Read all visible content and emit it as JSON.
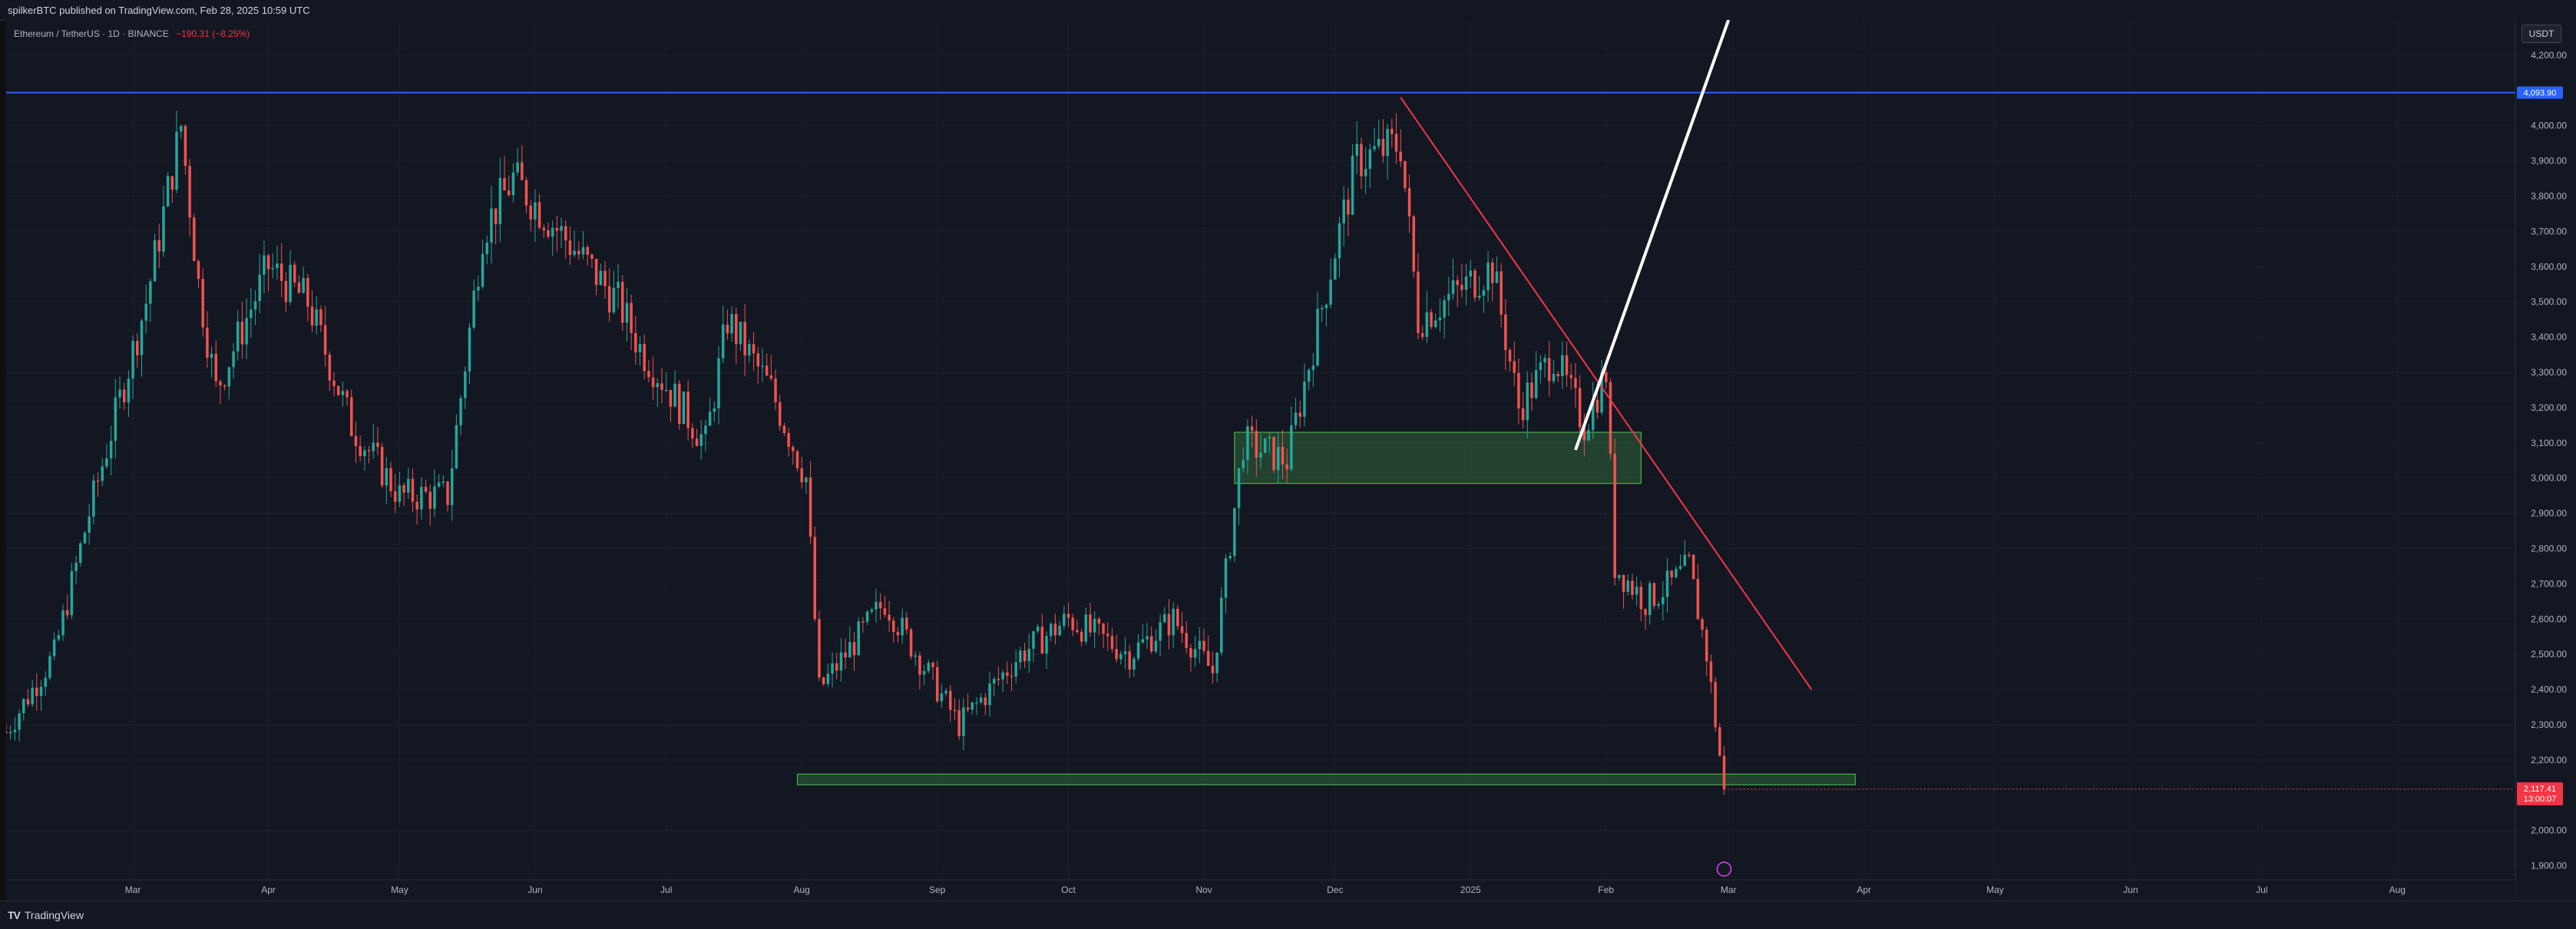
{
  "header": {
    "publish_text": "spilkerBTC published on TradingView.com, Feb 28, 2025 10:59 UTC"
  },
  "legend": {
    "symbol": "Ethereum / TetherUS · 1D · BINANCE",
    "change": "−190.31 (−8.25%)"
  },
  "currency": "USDT",
  "footer": {
    "brand": "TradingView"
  },
  "colors": {
    "up": "#26a69a",
    "down": "#ef5350",
    "hline": "#2962ff",
    "trendline": "#f23645",
    "zone_fill": "rgba(76,175,80,0.28)",
    "zone_stroke": "#4caf50",
    "arrow": "#ffffff",
    "background": "#131722"
  },
  "chart_data": {
    "type": "candlestick",
    "symbol": "ETHUSDT",
    "interval": "1D",
    "ylim": [
      1860,
      4300
    ],
    "y_ticks": [
      "4,200.00",
      "4,000.00",
      "3,900.00",
      "3,800.00",
      "3,700.00",
      "3,600.00",
      "3,500.00",
      "3,400.00",
      "3,300.00",
      "3,200.00",
      "3,100.00",
      "3,000.00",
      "2,900.00",
      "2,800.00",
      "2,700.00",
      "2,600.00",
      "2,500.00",
      "2,400.00",
      "2,300.00",
      "2,200.00",
      "2,000.00",
      "1,900.00"
    ],
    "x_ticks": [
      "Mar",
      "Apr",
      "May",
      "Jun",
      "Jul",
      "Aug",
      "Sep",
      "Oct",
      "Nov",
      "Dec",
      "2025",
      "Feb",
      "Mar",
      "Apr",
      "May",
      "Jun",
      "Jul",
      "Aug"
    ],
    "x_range": [
      "2024-02-01",
      "2025-08-28"
    ],
    "hline": {
      "value": 4093.9,
      "label": "4,093.90"
    },
    "last_price": {
      "value": 2117.41,
      "label": "2,117.41",
      "countdown": "13:00:07"
    },
    "zones": [
      {
        "from": "2024-11-08",
        "to": "2025-02-09",
        "high": 3130,
        "low": 2985
      },
      {
        "from": "2024-07-31",
        "to": "2025-03-30",
        "high": 2160,
        "low": 2130
      }
    ],
    "trendline": {
      "from": [
        "2024-12-16",
        4080
      ],
      "to": [
        "2025-03-20",
        2400
      ]
    },
    "arrow": {
      "from": [
        "2025-01-25",
        3080
      ],
      "to": [
        "2025-03-01",
        4300
      ]
    },
    "price_path": [
      [
        "2024-02-01",
        2280
      ],
      [
        "2024-02-12",
        2500
      ],
      [
        "2024-02-20",
        2900
      ],
      [
        "2024-03-04",
        3500
      ],
      [
        "2024-03-12",
        4000
      ],
      [
        "2024-03-16",
        3550
      ],
      [
        "2024-03-20",
        3250
      ],
      [
        "2024-04-01",
        3600
      ],
      [
        "2024-04-10",
        3500
      ],
      [
        "2024-04-20",
        3150
      ],
      [
        "2024-05-01",
        2950
      ],
      [
        "2024-05-12",
        2950
      ],
      [
        "2024-05-20",
        3700
      ],
      [
        "2024-05-27",
        3850
      ],
      [
        "2024-06-10",
        3650
      ],
      [
        "2024-06-20",
        3500
      ],
      [
        "2024-06-25",
        3370
      ],
      [
        "2024-07-10",
        3100
      ],
      [
        "2024-07-15",
        3450
      ],
      [
        "2024-07-25",
        3250
      ],
      [
        "2024-08-02",
        3000
      ],
      [
        "2024-08-05",
        2400
      ],
      [
        "2024-08-20",
        2650
      ],
      [
        "2024-09-06",
        2300
      ],
      [
        "2024-09-20",
        2500
      ],
      [
        "2024-10-01",
        2600
      ],
      [
        "2024-10-15",
        2500
      ],
      [
        "2024-10-25",
        2600
      ],
      [
        "2024-11-03",
        2450
      ],
      [
        "2024-11-10",
        3100
      ],
      [
        "2024-11-20",
        3050
      ],
      [
        "2024-12-01",
        3650
      ],
      [
        "2024-12-06",
        3900
      ],
      [
        "2024-12-16",
        3950
      ],
      [
        "2024-12-20",
        3450
      ],
      [
        "2025-01-06",
        3600
      ],
      [
        "2025-01-12",
        3200
      ],
      [
        "2025-01-20",
        3350
      ],
      [
        "2025-01-27",
        3150
      ],
      [
        "2025-02-01",
        3300
      ],
      [
        "2025-02-03",
        2750
      ],
      [
        "2025-02-10",
        2650
      ],
      [
        "2025-02-16",
        2700
      ],
      [
        "2025-02-20",
        2750
      ],
      [
        "2025-02-24",
        2500
      ],
      [
        "2025-02-28",
        2117
      ]
    ]
  }
}
